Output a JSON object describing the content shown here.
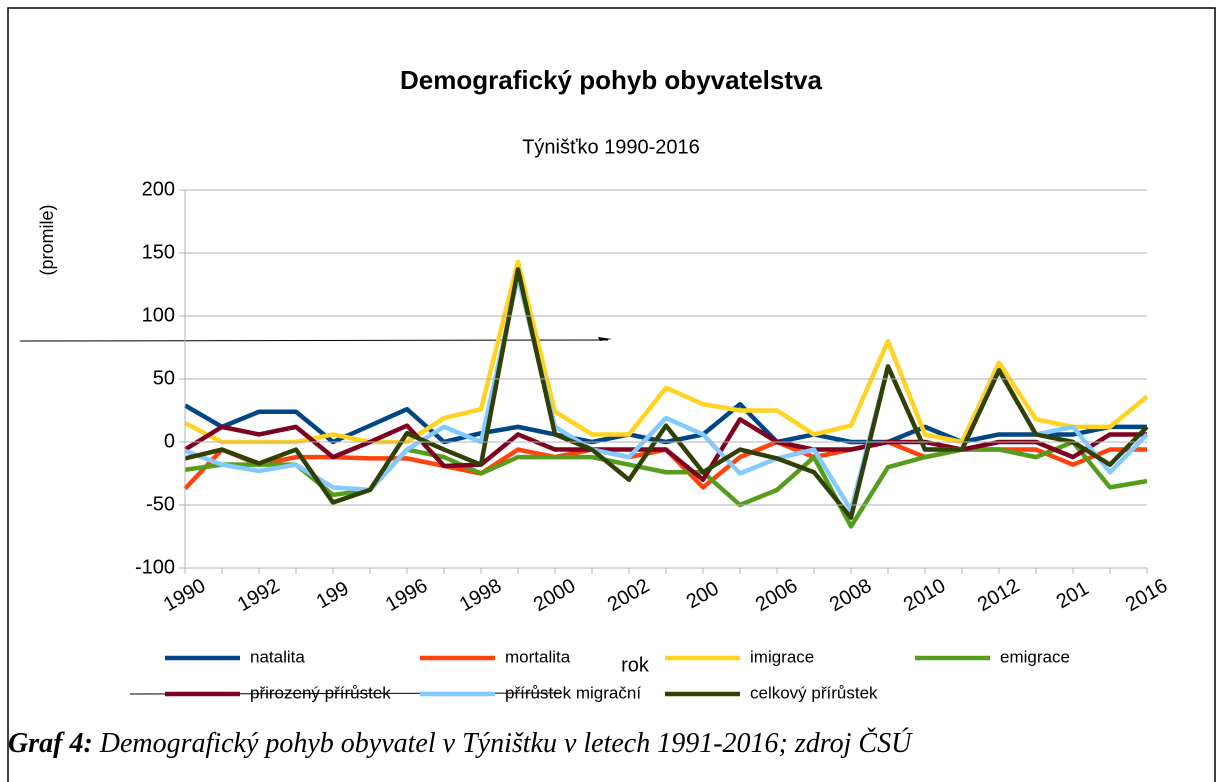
{
  "chart_data": {
    "type": "line",
    "title": "Demografický pohyb obyvatelstva",
    "subtitle": "Týnišťko 1990-2016",
    "ylabel": "(promile)",
    "xlabel": "rok",
    "categories": [
      "1990",
      null,
      "1992",
      null,
      "199",
      null,
      "1996",
      null,
      "1998",
      null,
      "2000",
      null,
      "2002",
      null,
      "200",
      null,
      "2006",
      null,
      "2008",
      null,
      "2010",
      null,
      "2012",
      null,
      "201",
      null,
      "2016"
    ],
    "series": [
      {
        "name": "natalita",
        "color": "#004586",
        "values": [
          29,
          12,
          24,
          24,
          0,
          13,
          26,
          0,
          7,
          12,
          6,
          0,
          6,
          0,
          6,
          30,
          0,
          6,
          0,
          0,
          12,
          0,
          6,
          6,
          6,
          12,
          12
        ]
      },
      {
        "name": "mortalita",
        "color": "#ff420e",
        "values": [
          -37,
          -6,
          -18,
          -12,
          -12,
          -13,
          -13,
          -19,
          -25,
          -6,
          -12,
          -6,
          -12,
          -6,
          -36,
          -12,
          0,
          -12,
          -6,
          0,
          -12,
          -6,
          -6,
          -6,
          -18,
          -6,
          -6
        ]
      },
      {
        "name": "imigrace",
        "color": "#ffd320",
        "values": [
          15,
          0,
          0,
          0,
          6,
          0,
          0,
          19,
          26,
          143,
          24,
          6,
          6,
          43,
          30,
          25,
          25,
          6,
          13,
          80,
          6,
          0,
          63,
          18,
          12,
          12,
          36
        ]
      },
      {
        "name": "emigrace",
        "color": "#579d1c",
        "values": [
          -22,
          -18,
          -18,
          -18,
          -42,
          -38,
          -6,
          -12,
          -25,
          -12,
          -12,
          -12,
          -18,
          -24,
          -24,
          -50,
          -38,
          -12,
          -67,
          -20,
          -12,
          -6,
          -6,
          -12,
          0,
          -36,
          -31
        ]
      },
      {
        "name": "přirozený přírůstek",
        "color": "#7e0021",
        "values": [
          -6,
          12,
          6,
          12,
          -12,
          0,
          13,
          -19,
          -18,
          6,
          -6,
          -6,
          -6,
          -6,
          -30,
          18,
          0,
          -6,
          -6,
          0,
          0,
          -6,
          0,
          0,
          -12,
          6,
          6
        ]
      },
      {
        "name": "přírůstek migrační",
        "color": "#83caff",
        "values": [
          -7,
          -18,
          -23,
          -18,
          -36,
          -38,
          -6,
          12,
          0,
          131,
          12,
          -6,
          -12,
          19,
          6,
          -25,
          -13,
          -6,
          -54,
          60,
          -6,
          -6,
          57,
          6,
          12,
          -24,
          6
        ]
      },
      {
        "name": "celkový přírůstek",
        "color": "#314004",
        "values": [
          -13,
          -6,
          -17,
          -6,
          -48,
          -38,
          7,
          -6,
          -18,
          137,
          6,
          -6,
          -30,
          13,
          -24,
          -6,
          -13,
          -24,
          -60,
          60,
          -6,
          -6,
          57,
          6,
          0,
          -18,
          12
        ]
      }
    ],
    "ylim": [
      -100,
      200
    ],
    "yticks": [
      -100,
      -50,
      0,
      50,
      100,
      150,
      200
    ],
    "grid": true,
    "legend": "bottom"
  },
  "caption": {
    "label": "Graf 4:",
    "text": "Demografický pohyb obyvatel v Týništku v letech 1991-2016; zdroj ČSÚ"
  }
}
